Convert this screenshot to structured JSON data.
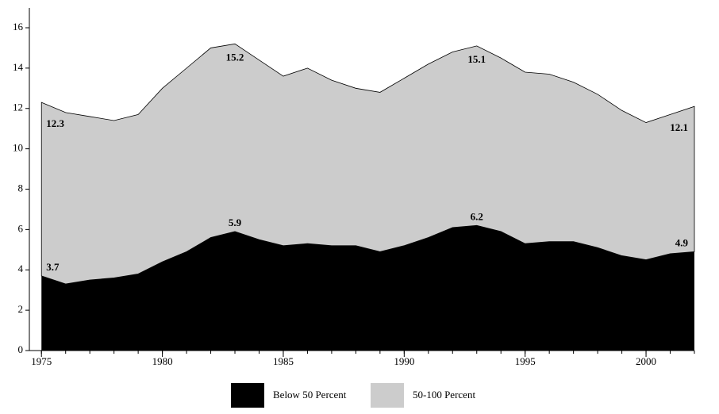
{
  "chart_data": {
    "type": "stacked_area",
    "x": [
      1975,
      1976,
      1977,
      1978,
      1979,
      1980,
      1981,
      1982,
      1983,
      1984,
      1985,
      1986,
      1987,
      1988,
      1989,
      1990,
      1991,
      1992,
      1993,
      1994,
      1995,
      1996,
      1997,
      1998,
      1999,
      2000,
      2001,
      2002
    ],
    "series": [
      {
        "name": "Below 50 Percent",
        "color": "#000000",
        "values": [
          3.7,
          3.3,
          3.5,
          3.6,
          3.8,
          4.4,
          4.9,
          5.6,
          5.9,
          5.5,
          5.2,
          5.3,
          5.2,
          5.2,
          4.9,
          5.2,
          5.6,
          6.1,
          6.2,
          5.9,
          5.3,
          5.4,
          5.4,
          5.1,
          4.7,
          4.5,
          4.8,
          4.9
        ]
      },
      {
        "name": "50-100 Percent",
        "color": "#cccccc",
        "values": [
          8.6,
          8.5,
          8.1,
          7.8,
          7.9,
          8.6,
          9.1,
          9.4,
          9.3,
          8.9,
          8.4,
          8.7,
          8.2,
          7.8,
          7.9,
          8.3,
          8.6,
          8.7,
          8.9,
          8.6,
          8.5,
          8.3,
          7.9,
          7.6,
          7.2,
          6.8,
          6.9,
          7.2
        ]
      }
    ],
    "annotations": [
      {
        "x": 1975,
        "y": 3.7
      },
      {
        "x": 1983,
        "y": 5.9
      },
      {
        "x": 1993,
        "y": 6.2
      },
      {
        "x": 2002,
        "y": 4.9
      },
      {
        "x": 1975,
        "y": 12.3
      },
      {
        "x": 1983,
        "y": 15.2
      },
      {
        "x": 1993,
        "y": 15.1
      },
      {
        "x": 2002,
        "y": 12.1
      }
    ],
    "xlim": [
      1974.5,
      2002
    ],
    "xticks": [
      1975,
      1980,
      1985,
      1990,
      1995,
      2000
    ],
    "ylim": [
      0,
      16
    ],
    "yticks": [
      0,
      2,
      4,
      6,
      8,
      10,
      12,
      14,
      16
    ]
  }
}
